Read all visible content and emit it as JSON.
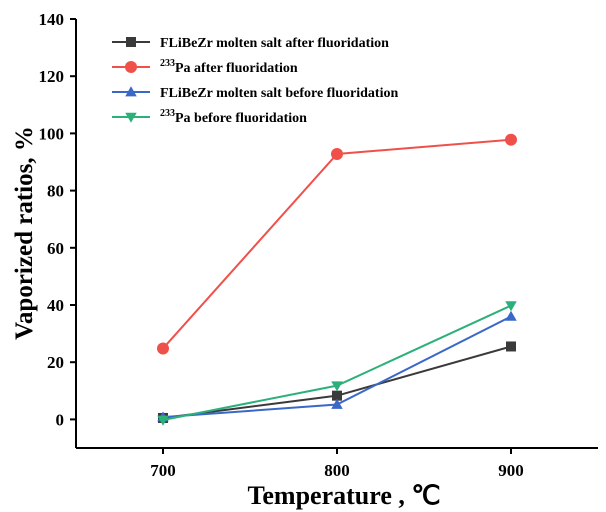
{
  "chart_data": {
    "type": "line",
    "title": "",
    "xlabel": "Temperature , ℃",
    "ylabel": "Vaporized ratios, %",
    "x": [
      700,
      800,
      900
    ],
    "xlim": [
      650,
      950
    ],
    "ylim": [
      -10,
      140
    ],
    "xticks": [
      700,
      800,
      900
    ],
    "yticks": [
      0,
      20,
      40,
      60,
      80,
      100,
      120,
      140
    ],
    "grid": false,
    "legend_position": "top-left",
    "series": [
      {
        "name": "FLiBeZr molten salt after fluoridation",
        "name_sup": "",
        "name_rest": "FLiBeZr molten salt after fluoridation",
        "values": [
          0.5,
          8.3,
          25.5
        ],
        "color": "#3a3a3a",
        "marker": "square"
      },
      {
        "name": "233Pa after fluoridation",
        "name_sup": "233",
        "name_rest": "Pa after fluoridation",
        "values": [
          24.8,
          92.8,
          97.8
        ],
        "color": "#f0504a",
        "marker": "circle"
      },
      {
        "name": "FLiBeZr molten salt before fluoridation",
        "name_sup": "",
        "name_rest": "FLiBeZr molten salt before fluoridation",
        "values": [
          0.8,
          5.2,
          36.0
        ],
        "color": "#3b68c8",
        "marker": "triangle-up"
      },
      {
        "name": "233Pa before fluoridation",
        "name_sup": "233",
        "name_rest": "Pa before fluoridation",
        "values": [
          -0.2,
          11.8,
          39.8
        ],
        "color": "#2cb07a",
        "marker": "triangle-down"
      }
    ]
  }
}
